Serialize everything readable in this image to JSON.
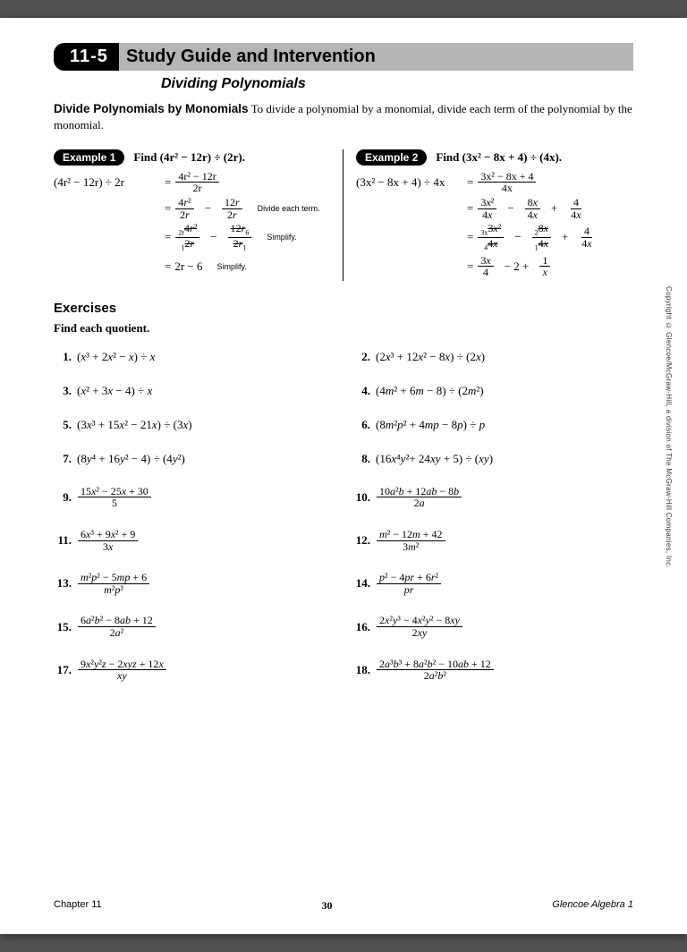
{
  "lesson": "11-5",
  "title": "Study Guide and Intervention",
  "subtitle": "Dividing Polynomials",
  "intro_bold": "Divide Polynomials by Monomials",
  "intro_text": " To divide a polynomial by a monomial, divide each term of the polynomial by the monomial.",
  "example1": {
    "tab": "Example 1",
    "prompt": "Find (4r² − 12r) ÷ (2r).",
    "steps": [
      {
        "lhs": "(4r² − 12r) ÷ 2r",
        "rhs_frac": {
          "num": "4r² − 12r",
          "den": "2r"
        },
        "note": ""
      },
      {
        "lhs": "",
        "rhs_terms": [
          {
            "num": "4r²",
            "den": "2r"
          },
          "−",
          {
            "num": "12r",
            "den": "2r"
          }
        ],
        "note": "Divide each term."
      },
      {
        "lhs": "",
        "rhs_cancel": true,
        "note": "Simplify."
      },
      {
        "lhs": "",
        "rhs_plain": "2r − 6",
        "note": "Simplify."
      }
    ]
  },
  "example2": {
    "tab": "Example 2",
    "prompt": "Find (3x² − 8x + 4) ÷ (4x).",
    "steps": [
      {
        "lhs": "(3x² − 8x + 4) ÷ 4x",
        "rhs_frac": {
          "num": "3x² − 8x + 4",
          "den": "4x"
        }
      },
      {
        "lhs": "",
        "rhs_terms": [
          {
            "num": "3x²",
            "den": "4x"
          },
          "−",
          {
            "num": "8x",
            "den": "4x"
          },
          "+",
          {
            "num": "4",
            "den": "4x"
          }
        ]
      },
      {
        "lhs": "",
        "rhs_cancel2": true
      },
      {
        "lhs": "",
        "rhs_terms": [
          {
            "num": "3x",
            "den": "4"
          },
          "− 2 +",
          {
            "num": "1",
            "den": "x"
          }
        ]
      }
    ]
  },
  "exercises_h": "Exercises",
  "instr": "Find each quotient.",
  "exercises": [
    {
      "n": "1.",
      "type": "plain",
      "text": "(x³ + 2x² − x) ÷ x"
    },
    {
      "n": "2.",
      "type": "plain",
      "text": "(2x³ + 12x² − 8x) ÷ (2x)"
    },
    {
      "n": "3.",
      "type": "plain",
      "text": "(x² + 3x − 4) ÷ x"
    },
    {
      "n": "4.",
      "type": "plain",
      "text": "(4m² + 6m − 8) ÷ (2m²)"
    },
    {
      "n": "5.",
      "type": "plain",
      "text": "(3x³ + 15x² − 21x) ÷ (3x)"
    },
    {
      "n": "6.",
      "type": "plain",
      "text": "(8m²p² + 4mp − 8p) ÷ p"
    },
    {
      "n": "7.",
      "type": "plain",
      "text": "(8y⁴ + 16y² − 4) ÷ (4y²)"
    },
    {
      "n": "8.",
      "type": "plain",
      "text": "(16x⁴y²+ 24xy + 5) ÷ (xy)"
    },
    {
      "n": "9.",
      "type": "frac",
      "num": "15x² − 25x + 30",
      "den": "5"
    },
    {
      "n": "10.",
      "type": "frac",
      "num": "10a²b + 12ab − 8b",
      "den": "2a"
    },
    {
      "n": "11.",
      "type": "frac",
      "num": "6x³ + 9x² + 9",
      "den": "3x"
    },
    {
      "n": "12.",
      "type": "frac",
      "num": "m² − 12m + 42",
      "den": "3m²"
    },
    {
      "n": "13.",
      "type": "frac",
      "num": "m²p² − 5mp + 6",
      "den": "m²p²"
    },
    {
      "n": "14.",
      "type": "frac",
      "num": "p² − 4pr + 6r²",
      "den": "pr"
    },
    {
      "n": "15.",
      "type": "frac",
      "num": "6a²b² − 8ab + 12",
      "den": "2a²"
    },
    {
      "n": "16.",
      "type": "frac",
      "num": "2x²y³ − 4x²y² − 8xy",
      "den": "2xy"
    },
    {
      "n": "17.",
      "type": "frac",
      "num": "9x²y²z − 2xyz + 12x",
      "den": "xy"
    },
    {
      "n": "18.",
      "type": "frac",
      "num": "2a³b³ + 8a²b² − 10ab + 12",
      "den": "2a²b²"
    }
  ],
  "footer": {
    "chapter": "Chapter 11",
    "page": "30",
    "pub": "Glencoe Algebra 1"
  },
  "copyright": "Copyright © Glencoe/McGraw-Hill, a division of The McGraw-Hill Companies, Inc.",
  "colors": {
    "page_bg": "#ffffff",
    "outer_bg": "#525252",
    "tab_bg": "#000000",
    "title_bg": "#b5b5b5"
  }
}
